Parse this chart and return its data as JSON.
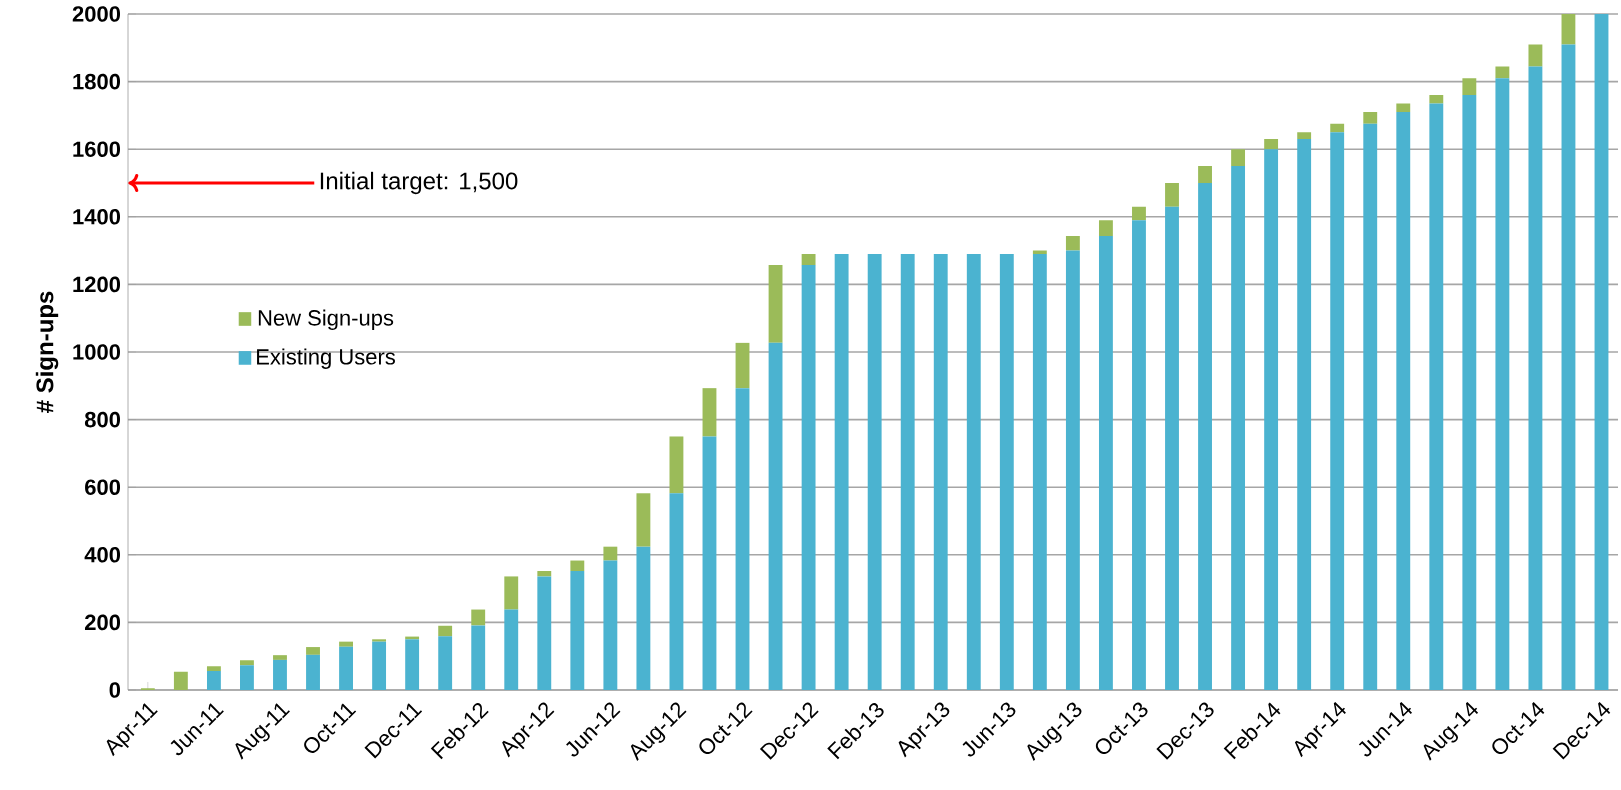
{
  "chart_data": {
    "type": "bar",
    "stacked": true,
    "ylabel": "# Sign-ups",
    "categories": [
      "Apr-11",
      null,
      "Jun-11",
      null,
      "Aug-11",
      null,
      "Oct-11",
      null,
      "Dec-11",
      null,
      "Feb-12",
      null,
      "Apr-12",
      null,
      "Jun-12",
      null,
      "Aug-12",
      null,
      "Oct-12",
      null,
      "Dec-12",
      null,
      "Feb-13",
      null,
      "Apr-13",
      null,
      "Jun-13",
      null,
      "Aug-13",
      null,
      "Oct-13",
      null,
      "Dec-13",
      null,
      "Feb-14",
      null,
      "Apr-14",
      null,
      "Jun-14",
      null,
      "Aug-14",
      null,
      "Oct-14",
      null,
      "Dec-14"
    ],
    "series": [
      {
        "name": "Existing Users",
        "color": "#4bb3d0",
        "values": [
          0,
          0,
          56,
          73,
          89,
          104,
          128,
          143,
          150,
          159,
          191,
          238,
          336,
          352,
          383,
          424,
          582,
          750,
          893,
          1027,
          1257,
          1290,
          1290,
          1290,
          1290,
          1290,
          1290,
          1290,
          1300,
          1343,
          1390,
          1430,
          1500,
          1550,
          1600,
          1630,
          1650,
          1675,
          1710,
          1735,
          1760,
          1810,
          1845,
          1910,
          2000
        ]
      },
      {
        "name": "New Sign-ups",
        "color": "#9bbb59",
        "values": [
          5,
          54,
          14,
          15,
          14,
          23,
          15,
          7,
          8,
          31,
          47,
          98,
          16,
          31,
          41,
          158,
          168,
          143,
          134,
          230,
          33,
          0,
          0,
          0,
          0,
          0,
          0,
          10,
          43,
          47,
          40,
          70,
          50,
          50,
          30,
          20,
          25,
          35,
          25,
          25,
          50,
          35,
          65,
          90,
          0
        ]
      }
    ],
    "ylim": [
      0,
      2000
    ],
    "yticks": [
      0,
      200,
      400,
      600,
      800,
      1000,
      1200,
      1400,
      1600,
      1800,
      2000
    ],
    "grid": "y",
    "legend": "left",
    "ref_lines": [
      {
        "axis": "y",
        "value": 1500,
        "label": "Initial target: 1,500",
        "color": "#ff0000"
      }
    ]
  }
}
